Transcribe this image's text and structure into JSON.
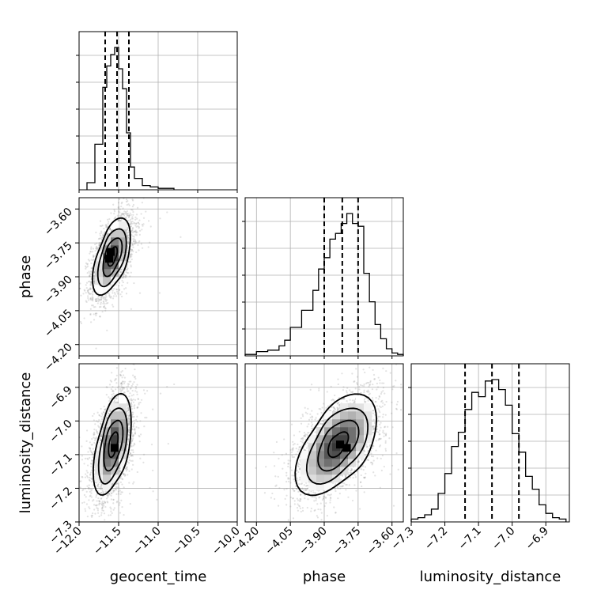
{
  "chart_data": {
    "type": "corner",
    "parameters": [
      "geocent_time",
      "phase",
      "luminosity_distance"
    ],
    "ranges": {
      "geocent_time": [
        -12.0,
        -10.0
      ],
      "phase": [
        -4.25,
        -3.55
      ],
      "luminosity_distance": [
        -7.3,
        -6.83
      ]
    },
    "ticks": {
      "geocent_time": [
        "−12.0",
        "−11.5",
        "−11.0",
        "−10.5",
        "−10.0"
      ],
      "phase": [
        "−4.20",
        "−4.05",
        "−3.90",
        "−3.75",
        "−3.60"
      ],
      "luminosity_distance": [
        "−7.3",
        "−7.2",
        "−7.1",
        "−7.0",
        "−6.9"
      ]
    },
    "quantiles": {
      "geocent_time": [
        -11.67,
        -11.52,
        -11.37
      ],
      "phase": [
        -3.9,
        -3.82,
        -3.75
      ],
      "luminosity_distance": [
        -7.14,
        -7.06,
        -6.98
      ]
    },
    "histograms": {
      "geocent_time": {
        "edges": [
          -11.9,
          -11.8,
          -11.7,
          -11.65,
          -11.6,
          -11.55,
          -11.5,
          -11.45,
          -11.4,
          -11.35,
          -11.3,
          -11.2,
          -11.1,
          -11.0,
          -10.8
        ],
        "counts": [
          0.05,
          0.32,
          0.72,
          0.87,
          0.95,
          1.0,
          0.85,
          0.71,
          0.4,
          0.16,
          0.08,
          0.03,
          0.02,
          0.01
        ]
      },
      "phase": {
        "edges": [
          -4.25,
          -4.2,
          -4.15,
          -4.1,
          -4.075,
          -4.05,
          -4.0,
          -3.95,
          -3.925,
          -3.9,
          -3.875,
          -3.85,
          -3.825,
          -3.8,
          -3.775,
          -3.75,
          -3.725,
          -3.7,
          -3.675,
          -3.65,
          -3.625,
          -3.6,
          -3.575,
          -3.55
        ],
        "counts": [
          0.01,
          0.03,
          0.04,
          0.07,
          0.11,
          0.2,
          0.32,
          0.46,
          0.61,
          0.69,
          0.82,
          0.86,
          0.93,
          1.0,
          0.93,
          0.91,
          0.58,
          0.38,
          0.22,
          0.12,
          0.05,
          0.02,
          0.01
        ]
      },
      "luminosity_distance": {
        "edges": [
          -7.3,
          -7.28,
          -7.26,
          -7.24,
          -7.22,
          -7.2,
          -7.18,
          -7.16,
          -7.14,
          -7.12,
          -7.1,
          -7.08,
          -7.06,
          -7.04,
          -7.02,
          -7.0,
          -6.98,
          -6.96,
          -6.94,
          -6.92,
          -6.9,
          -6.88,
          -6.86,
          -6.84
        ],
        "counts": [
          0.02,
          0.03,
          0.05,
          0.09,
          0.2,
          0.34,
          0.53,
          0.63,
          0.79,
          0.91,
          0.88,
          0.99,
          1.0,
          0.93,
          0.82,
          0.62,
          0.49,
          0.32,
          0.23,
          0.12,
          0.06,
          0.03,
          0.02
        ]
      }
    },
    "pairs": [
      {
        "x": "geocent_time",
        "y": "phase",
        "mean": [
          -11.58,
          -3.81
        ],
        "sd": [
          0.12,
          0.085
        ],
        "rho": 0.55,
        "peaks": [
          [
            -11.6,
            -3.79
          ],
          [
            -11.62,
            -3.82
          ]
        ]
      },
      {
        "x": "geocent_time",
        "y": "luminosity_distance",
        "mean": [
          -11.57,
          -7.07
        ],
        "sd": [
          0.12,
          0.075
        ],
        "rho": 0.5,
        "peaks": [
          [
            -11.55,
            -7.08
          ]
        ]
      },
      {
        "x": "phase",
        "y": "luminosity_distance",
        "mean": [
          -3.84,
          -7.07
        ],
        "sd": [
          0.09,
          0.075
        ],
        "rho": 0.55,
        "peaks": [
          [
            -3.83,
            -7.07
          ],
          [
            -3.8,
            -7.08
          ]
        ]
      }
    ],
    "contour_levels_sigma": [
      0.5,
      1.0,
      1.5,
      2.0
    ],
    "grid": true,
    "legend": "none",
    "title": "",
    "xlabel": [
      "geocent_time",
      "phase",
      "luminosity_distance"
    ],
    "ylabel": [
      "",
      "phase",
      "luminosity_distance"
    ]
  }
}
